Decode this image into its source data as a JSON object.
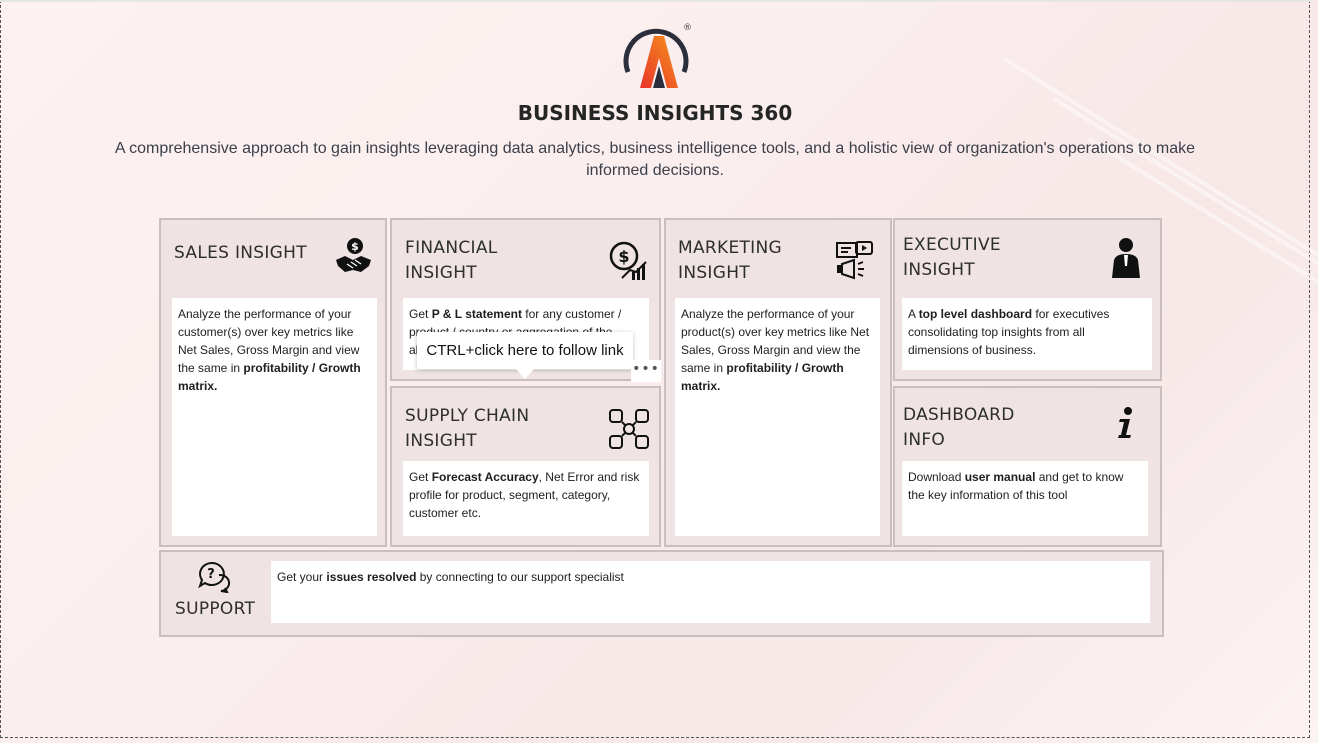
{
  "header": {
    "title": "BUSINESS INSIGHTS 360",
    "subtitle": "A comprehensive approach to gain insights leveraging data analytics, business intelligence tools, and a holistic view of organization's operations to make informed decisions.",
    "logo_mark": "®"
  },
  "cards": {
    "sales": {
      "title": "SALES INSIGHT",
      "icon": "handshake-dollar-icon",
      "body_pre": "Analyze the performance of your customer(s) over key metrics like Net Sales, Gross Margin and view the same in ",
      "body_bold": "profitability / Growth matrix."
    },
    "financial": {
      "title": "FINANCIAL\nINSIGHT",
      "icon": "dollar-chart-icon",
      "body_pre": "Get ",
      "body_bold": "P & L statement",
      "body_post": " for any customer / product / country or aggregation of the above."
    },
    "marketing": {
      "title": "MARKETING\nINSIGHT",
      "icon": "megaphone-presentation-icon",
      "body_pre": "Analyze the performance of your product(s) over key metrics like Net Sales, Gross Margin and view the same in ",
      "body_bold": "profitability / Growth matrix."
    },
    "executive": {
      "title": "EXECUTIVE\nINSIGHT",
      "icon": "businessman-icon",
      "body_pre": "A ",
      "body_bold": "top level dashboard",
      "body_post": " for executives consolidating top insights from all dimensions of business."
    },
    "supply": {
      "title": "SUPPLY CHAIN\nINSIGHT",
      "icon": "supply-network-icon",
      "body_pre": "Get ",
      "body_bold": "Forecast Accuracy",
      "body_post": ", Net Error and risk profile for product, segment, category, customer etc."
    },
    "dashboard_info": {
      "title": "DASHBOARD\nINFO",
      "icon": "info-icon",
      "body_pre": "Download ",
      "body_bold": "user manual",
      "body_post": " and get to know the key information of this tool"
    },
    "support": {
      "title": "SUPPORT",
      "icon": "chat-question-icon",
      "body_pre": "Get your ",
      "body_bold": "issues resolved",
      "body_post": " by connecting to our support specialist"
    }
  },
  "tooltip": {
    "text": "CTRL+click here to follow link",
    "more_label": "•••"
  },
  "colors": {
    "card_bg": "#efe3e3",
    "card_border": "#c9bfbf",
    "logo_orange": "#f15a24",
    "logo_dark": "#2b2e3b"
  }
}
